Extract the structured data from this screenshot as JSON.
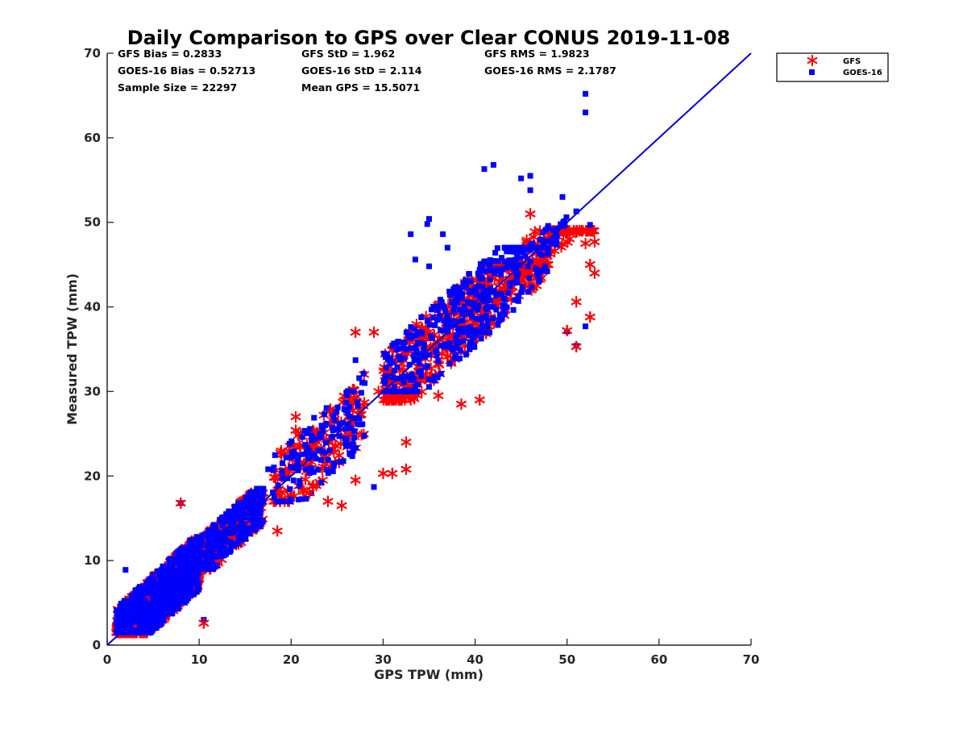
{
  "chart_data": {
    "type": "scatter",
    "title": "Daily Comparison to GPS over Clear CONUS 2019-11-08",
    "xlabel": "GPS TPW (mm)",
    "ylabel": "Measured TPW (mm)",
    "xlim": [
      0,
      70
    ],
    "ylim": [
      0,
      70
    ],
    "xticks": [
      "0",
      "10",
      "20",
      "30",
      "40",
      "50",
      "60",
      "70"
    ],
    "yticks": [
      "0",
      "10",
      "20",
      "30",
      "40",
      "50",
      "60",
      "70"
    ],
    "legend_position": "outside top-right",
    "stats": [
      [
        "GFS Bias = 0.2833",
        "GFS StD = 1.962",
        "GFS RMS = 1.9823"
      ],
      [
        "GOES-16 Bias = 0.52713",
        "GOES-16 StD = 2.114",
        "GOES-16 RMS = 2.1787"
      ],
      [
        "Sample Size = 22297",
        "Mean GPS = 15.5071"
      ]
    ],
    "reference_line": {
      "name": "1:1 line",
      "x": [
        0,
        70
      ],
      "y": [
        0,
        70
      ],
      "color": "#0000dd"
    },
    "series": [
      {
        "name": "GFS",
        "marker": "asterisk",
        "color": "#ff0000",
        "clusters": [
          {
            "x": [
              1,
              10
            ],
            "y": [
              1.5,
              13
            ],
            "n": 800
          },
          {
            "x": [
              8,
              17
            ],
            "y": [
              9,
              18
            ],
            "n": 400
          },
          {
            "x": [
              18,
              28
            ],
            "y": [
              17,
              32
            ],
            "n": 140
          },
          {
            "x": [
              30,
              48
            ],
            "y": [
              29,
              45
            ],
            "n": 420
          },
          {
            "x": [
              45,
              53
            ],
            "y": [
              40,
              49
            ],
            "n": 100
          }
        ],
        "points": [
          [
            10.5,
            2.6
          ],
          [
            8,
            16.8
          ],
          [
            18.5,
            13.5
          ],
          [
            22,
            18
          ],
          [
            24,
            17
          ],
          [
            25.5,
            16.5
          ],
          [
            27,
            19.5
          ],
          [
            31,
            20.3
          ],
          [
            30,
            20.3
          ],
          [
            32.5,
            20.8
          ],
          [
            32.5,
            24
          ],
          [
            27,
            37
          ],
          [
            29,
            37
          ],
          [
            52.5,
            38.8
          ],
          [
            51,
            35.3
          ],
          [
            51,
            40.6
          ],
          [
            50,
            37.2
          ],
          [
            52,
            47.5
          ],
          [
            53,
            47.7
          ],
          [
            53,
            44
          ],
          [
            52.5,
            45
          ],
          [
            46,
            51
          ],
          [
            33,
            29
          ],
          [
            38.5,
            28.5
          ],
          [
            40.5,
            29
          ],
          [
            36,
            29.5
          ],
          [
            20.5,
            27
          ],
          [
            20.5,
            25.4
          ],
          [
            29.5,
            30
          ]
        ]
      },
      {
        "name": "GOES-16",
        "marker": "square",
        "color": "#0000ff",
        "clusters": [
          {
            "x": [
              1,
              10
            ],
            "y": [
              1.5,
              14
            ],
            "n": 800
          },
          {
            "x": [
              8,
              17
            ],
            "y": [
              9,
              18.5
            ],
            "n": 400
          },
          {
            "x": [
              18,
              28
            ],
            "y": [
              17,
              33
            ],
            "n": 140
          },
          {
            "x": [
              30,
              48
            ],
            "y": [
              30,
              47
            ],
            "n": 420
          },
          {
            "x": [
              43,
              50
            ],
            "y": [
              47,
              53
            ],
            "n": 60
          }
        ],
        "points": [
          [
            52,
            65.2
          ],
          [
            52,
            63
          ],
          [
            41,
            56.3
          ],
          [
            42,
            56.8
          ],
          [
            45,
            55.2
          ],
          [
            46,
            55.5
          ],
          [
            46,
            53.8
          ],
          [
            49.5,
            53
          ],
          [
            51,
            51.3
          ],
          [
            52.5,
            49.7
          ],
          [
            35,
            50.4
          ],
          [
            34.8,
            49.8
          ],
          [
            33,
            48.6
          ],
          [
            37,
            47
          ],
          [
            36.5,
            48.6
          ],
          [
            33.5,
            45.6
          ],
          [
            35,
            44.8
          ],
          [
            29,
            18.7
          ],
          [
            27,
            33.7
          ],
          [
            28,
            31
          ],
          [
            26.8,
            30
          ],
          [
            52,
            37.7
          ],
          [
            51,
            35.4
          ],
          [
            10.5,
            3
          ],
          [
            2,
            8.9
          ],
          [
            17.5,
            20.8
          ],
          [
            19,
            20.5
          ],
          [
            8,
            16.8
          ],
          [
            50,
            37.1
          ]
        ]
      }
    ]
  }
}
